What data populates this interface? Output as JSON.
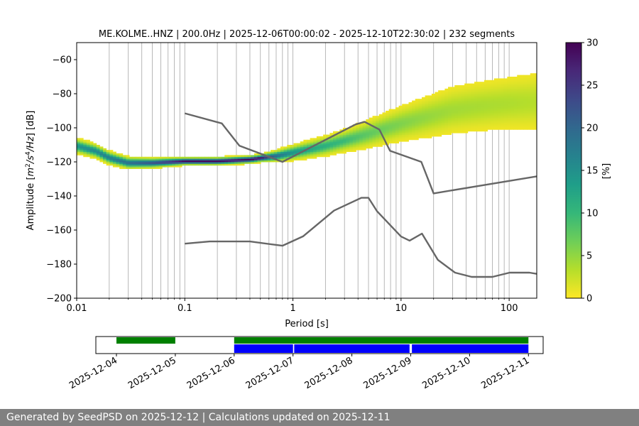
{
  "chart_data": {
    "type": "heatmap",
    "title": "ME.KOLME..HNZ | 200.0Hz | 2025-12-06T00:00:02 - 2025-12-10T22:30:02 | 232 segments",
    "xlabel": "Period [s]",
    "ylabel_parts": {
      "prefix": "Amplitude [",
      "m": "m",
      "exp1": "2",
      "s": "/s",
      "exp2": "4",
      "hz": "/Hz",
      "suffix": "] [dB]"
    },
    "x_scale": "log",
    "xlim": [
      0.01,
      180
    ],
    "ylim": [
      -200,
      -50
    ],
    "x_ticks": [
      {
        "v": 0.01,
        "label": "0.01"
      },
      {
        "v": 0.1,
        "label": "0.1"
      },
      {
        "v": 1,
        "label": "1"
      },
      {
        "v": 10,
        "label": "10"
      },
      {
        "v": 100,
        "label": "100"
      }
    ],
    "y_ticks": [
      {
        "v": -60,
        "label": "−60"
      },
      {
        "v": -80,
        "label": "−80"
      },
      {
        "v": -100,
        "label": "−100"
      },
      {
        "v": -120,
        "label": "−120"
      },
      {
        "v": -140,
        "label": "−140"
      },
      {
        "v": -160,
        "label": "−160"
      },
      {
        "v": -180,
        "label": "−180"
      },
      {
        "v": -200,
        "label": "−200"
      }
    ],
    "grid": true,
    "colorbar": {
      "label": "[%]",
      "min": 0,
      "max": 30,
      "ticks": [
        {
          "v": 0,
          "label": "0"
        },
        {
          "v": 5,
          "label": "5"
        },
        {
          "v": 10,
          "label": "10"
        },
        {
          "v": 15,
          "label": "15"
        },
        {
          "v": 20,
          "label": "20"
        },
        {
          "v": 25,
          "label": "25"
        },
        {
          "v": 30,
          "label": "30"
        }
      ],
      "colors": [
        "#fde725",
        "#b5de2b",
        "#6ece58",
        "#35b779",
        "#1f9e89",
        "#26828e",
        "#31688e",
        "#3e4989",
        "#482878",
        "#440154"
      ]
    },
    "psd_mode": [
      [
        0.01,
        -111
      ],
      [
        0.015,
        -114
      ],
      [
        0.02,
        -118
      ],
      [
        0.03,
        -121
      ],
      [
        0.05,
        -121
      ],
      [
        0.1,
        -120
      ],
      [
        0.2,
        -120
      ],
      [
        0.4,
        -119
      ],
      [
        0.7,
        -117
      ],
      [
        1,
        -115
      ],
      [
        2,
        -111
      ],
      [
        3,
        -108
      ],
      [
        5,
        -104
      ],
      [
        7,
        -101
      ],
      [
        10,
        -98
      ],
      [
        20,
        -93
      ],
      [
        30,
        -90
      ],
      [
        50,
        -88
      ],
      [
        100,
        -86
      ],
      [
        180,
        -85
      ]
    ],
    "psd_spread": [
      [
        0.01,
        2
      ],
      [
        0.1,
        1
      ],
      [
        0.5,
        1
      ],
      [
        1,
        2
      ],
      [
        3,
        3
      ],
      [
        10,
        5
      ],
      [
        30,
        7
      ],
      [
        100,
        8
      ],
      [
        180,
        9
      ]
    ],
    "noise_models": [
      {
        "name": "NHNM",
        "points": [
          [
            0.1,
            -91.5
          ],
          [
            0.22,
            -97.4
          ],
          [
            0.32,
            -110.5
          ],
          [
            0.8,
            -120
          ],
          [
            3.8,
            -98
          ],
          [
            4.6,
            -96.5
          ],
          [
            6.3,
            -101
          ],
          [
            7.9,
            -113.5
          ],
          [
            15.4,
            -120
          ],
          [
            20,
            -138.5
          ],
          [
            180,
            -128.5
          ]
        ]
      },
      {
        "name": "NLNM",
        "points": [
          [
            0.1,
            -168
          ],
          [
            0.17,
            -166.7
          ],
          [
            0.4,
            -166.7
          ],
          [
            0.8,
            -169.2
          ],
          [
            1.24,
            -163.7
          ],
          [
            2.4,
            -148.6
          ],
          [
            4.3,
            -141.1
          ],
          [
            5,
            -141.1
          ],
          [
            6,
            -149
          ],
          [
            10,
            -163.8
          ],
          [
            12,
            -166.2
          ],
          [
            15.6,
            -162.1
          ],
          [
            21.9,
            -177.5
          ],
          [
            31.6,
            -185
          ],
          [
            45,
            -187.5
          ],
          [
            70,
            -187.5
          ],
          [
            101,
            -185
          ],
          [
            154,
            -185
          ],
          [
            180,
            -185.7
          ]
        ]
      }
    ],
    "data_availability": {
      "date_ticks": [
        "2025-12-04",
        "2025-12-05",
        "2025-12-06",
        "2025-12-07",
        "2025-12-08",
        "2025-12-09",
        "2025-12-10",
        "2025-12-11"
      ],
      "range_days": [
        -0.35,
        7.25
      ],
      "green_segments": [
        [
          0,
          1
        ],
        [
          2,
          7
        ]
      ],
      "blue_segments": [
        [
          2,
          3
        ],
        [
          3.02,
          4.98
        ],
        [
          5.02,
          7
        ]
      ],
      "colors": {
        "green": "#008000",
        "blue": "#0000ff"
      }
    }
  },
  "footer": {
    "text": "Generated by SeedPSD on 2025-12-12 | Calculations updated on 2025-12-11"
  }
}
